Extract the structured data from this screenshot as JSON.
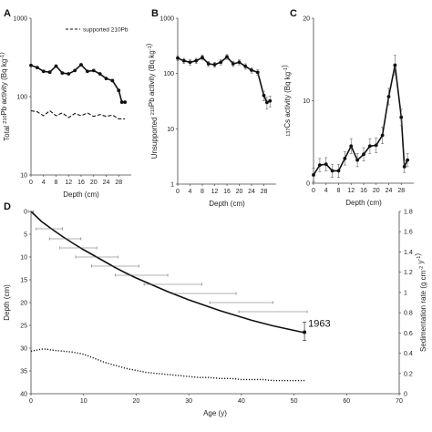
{
  "chart_data": [
    {
      "panel": "A",
      "type": "line",
      "title": "",
      "xlabel": "Depth (cm)",
      "ylabel": "Total 210Pb activity (Bq kg-1)",
      "ylabel_parts": {
        "pre": "Total ",
        "sup": "210",
        "post": "Pb activity (Bq kg",
        "sup2": "-1",
        "end": ")"
      },
      "yscale": "log",
      "ylim": [
        10,
        1000
      ],
      "yticks": [
        10,
        100,
        1000
      ],
      "xlim": [
        0,
        32
      ],
      "xticks": [
        0,
        4,
        8,
        12,
        16,
        20,
        24,
        28
      ],
      "legend": {
        "label": "supported 210Pb",
        "position": "top-right"
      },
      "series": [
        {
          "style": "solid-markers",
          "x": [
            0,
            2,
            4,
            6,
            8,
            10,
            12,
            14,
            16,
            18,
            20,
            22,
            24,
            26,
            28,
            29,
            30
          ],
          "y": [
            250,
            235,
            210,
            205,
            245,
            200,
            195,
            215,
            255,
            210,
            215,
            195,
            170,
            160,
            120,
            85,
            85
          ]
        },
        {
          "name": "supported 210Pb",
          "style": "dashed",
          "x": [
            0,
            2,
            4,
            6,
            8,
            10,
            12,
            14,
            16,
            18,
            20,
            22,
            24,
            26,
            28,
            30
          ],
          "y": [
            66,
            64,
            57,
            66,
            57,
            62,
            54,
            61,
            57,
            62,
            56,
            59,
            56,
            58,
            52,
            52
          ]
        }
      ]
    },
    {
      "panel": "B",
      "type": "line",
      "title": "",
      "xlabel": "Depth (cm)",
      "ylabel": "Unsupported 210Pb activity (Bq kg-1)",
      "ylabel_parts": {
        "pre": "Unsupported ",
        "sup": "210",
        "post": "Pb activity (Bq kg",
        "sup2": "-1",
        "end": ")"
      },
      "yscale": "log",
      "ylim": [
        1,
        1000
      ],
      "yticks": [
        1,
        10,
        100,
        1000
      ],
      "xlim": [
        0,
        32
      ],
      "xticks": [
        0,
        4,
        8,
        12,
        16,
        20,
        24,
        28
      ],
      "series": [
        {
          "style": "solid-markers",
          "x": [
            0,
            2,
            4,
            6,
            8,
            10,
            12,
            14,
            16,
            18,
            20,
            22,
            24,
            26,
            28,
            29,
            30
          ],
          "y": [
            190,
            170,
            160,
            170,
            195,
            150,
            145,
            160,
            200,
            150,
            160,
            135,
            115,
            105,
            40,
            30,
            32
          ],
          "err": [
            20,
            18,
            17,
            18,
            20,
            16,
            15,
            17,
            20,
            16,
            17,
            15,
            13,
            12,
            8,
            7,
            7
          ]
        }
      ]
    },
    {
      "panel": "C",
      "type": "line",
      "title": "",
      "xlabel": "Depth (cm)",
      "ylabel": "137Cs activity (Bq kg-1)",
      "ylabel_parts": {
        "pre": "",
        "sup": "137",
        "post": "Cs activity (Bq kg",
        "sup2": "-1",
        "end": ")"
      },
      "ylim": [
        0,
        20
      ],
      "yticks": [
        0,
        10,
        20
      ],
      "xlim": [
        0,
        32
      ],
      "xticks": [
        0,
        4,
        8,
        12,
        16,
        20,
        24,
        28
      ],
      "series": [
        {
          "style": "solid-markers",
          "x": [
            0,
            2,
            4,
            6,
            8,
            10,
            12,
            14,
            16,
            18,
            20,
            22,
            24,
            26,
            28,
            29,
            30
          ],
          "y": [
            1.0,
            2.2,
            2.3,
            1.5,
            1.5,
            3.0,
            4.5,
            2.8,
            3.5,
            4.5,
            4.6,
            5.8,
            10.5,
            14.3,
            8.0,
            2.0,
            2.8
          ],
          "err": [
            0.8,
            0.8,
            0.8,
            0.8,
            0.8,
            0.8,
            0.9,
            0.8,
            0.8,
            0.9,
            0.9,
            1.0,
            1.0,
            1.2,
            1.0,
            0.7,
            0.8
          ]
        }
      ]
    },
    {
      "panel": "D",
      "type": "line",
      "title": "",
      "xlabel": "Age (y)",
      "ylabel": "Depth (cm)",
      "y2label": "Sedimentation rate (g cm-2 y-1)",
      "y2label_parts": {
        "pre": "Sedimentation rate (g cm",
        "sup": "-2",
        "mid": " y",
        "sup2": "-1",
        "end": ")"
      },
      "xlim": [
        0,
        70
      ],
      "xticks": [
        0,
        10,
        20,
        30,
        40,
        50,
        60,
        70
      ],
      "ylim": [
        40,
        0
      ],
      "yticks": [
        0,
        5,
        10,
        15,
        20,
        25,
        30,
        35,
        40
      ],
      "y2lim": [
        0,
        1.8
      ],
      "y2ticks": [
        "0",
        "0.2",
        "0.4",
        "0.6",
        "0.8",
        "1",
        "1.2",
        "1.4",
        "1.6",
        "1.8"
      ],
      "annotation": {
        "text": "1963",
        "x": 52,
        "y": 26.5
      },
      "series": [
        {
          "name": "age-depth",
          "style": "solid",
          "x": [
            0,
            2,
            4,
            6,
            8,
            10,
            12,
            14,
            16,
            18,
            20,
            22,
            24,
            26,
            28,
            30,
            32,
            34,
            36,
            38,
            40,
            42,
            44,
            46,
            48,
            50,
            52
          ],
          "y": [
            0,
            2.2,
            3.9,
            5.5,
            7.0,
            8.4,
            9.7,
            11.0,
            12.3,
            13.5,
            14.6,
            15.6,
            16.6,
            17.6,
            18.5,
            19.4,
            20.2,
            21.0,
            21.8,
            22.5,
            23.2,
            23.9,
            24.5,
            25.1,
            25.6,
            26.1,
            26.6
          ]
        },
        {
          "name": "age-points",
          "style": "xerror",
          "x": [
            0,
            3.5,
            6.5,
            9,
            12.5,
            16,
            21,
            27,
            33,
            40,
            46,
            52
          ],
          "y": [
            0,
            3.8,
            6.0,
            8.0,
            10.0,
            12.0,
            14.0,
            16.0,
            18.0,
            20.0,
            22.0,
            26.5
          ],
          "err": [
            0.5,
            2.5,
            3,
            3.5,
            4,
            4.5,
            5,
            5.5,
            6,
            6,
            6.5,
            0
          ]
        },
        {
          "name": "sedimentation rate",
          "style": "dotted",
          "axis": "y2",
          "x": [
            0,
            1,
            2,
            3,
            4,
            6,
            8,
            10,
            12,
            14,
            16,
            18,
            20,
            22,
            24,
            26,
            28,
            30,
            32,
            34,
            36,
            38,
            40,
            42,
            44,
            46,
            48,
            50,
            52
          ],
          "y": [
            0.42,
            0.43,
            0.44,
            0.44,
            0.43,
            0.42,
            0.41,
            0.39,
            0.35,
            0.31,
            0.28,
            0.25,
            0.23,
            0.21,
            0.2,
            0.19,
            0.18,
            0.17,
            0.16,
            0.16,
            0.15,
            0.15,
            0.14,
            0.14,
            0.14,
            0.13,
            0.13,
            0.13,
            0.13
          ]
        }
      ]
    }
  ]
}
